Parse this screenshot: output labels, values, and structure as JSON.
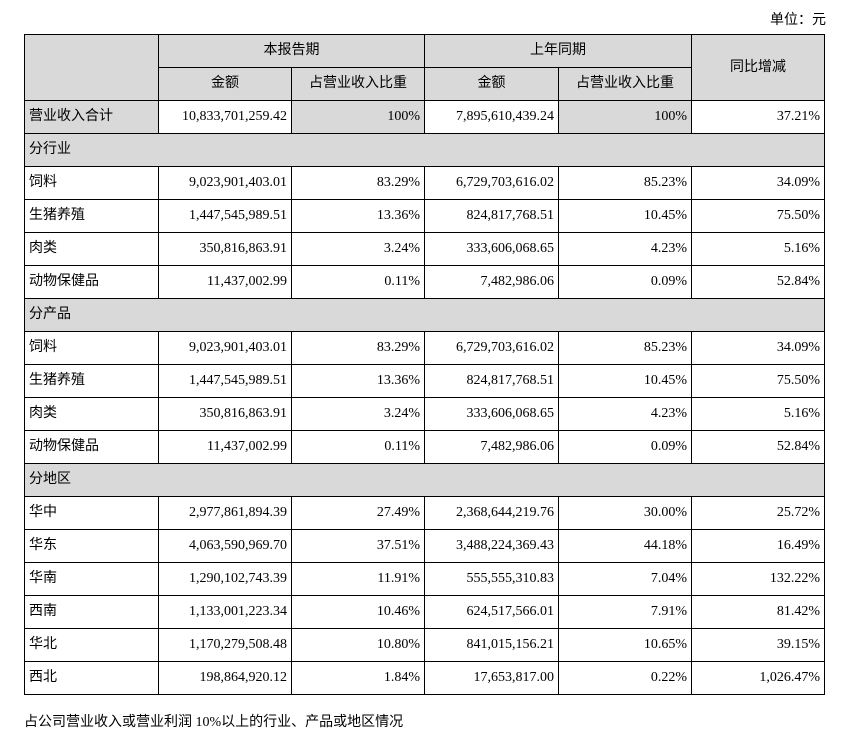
{
  "unit_label": "单位：元",
  "headers": {
    "current_period": "本报告期",
    "prior_period": "上年同期",
    "yoy_change": "同比增减",
    "amount": "金额",
    "ratio": "占营业收入比重"
  },
  "total": {
    "label": "营业收入合计",
    "cur_amount": "10,833,701,259.42",
    "cur_ratio": "100%",
    "prev_amount": "7,895,610,439.24",
    "prev_ratio": "100%",
    "change": "37.21%"
  },
  "sections": [
    {
      "title": "分行业",
      "rows": [
        {
          "label": "饲料",
          "cur_amount": "9,023,901,403.01",
          "cur_ratio": "83.29%",
          "prev_amount": "6,729,703,616.02",
          "prev_ratio": "85.23%",
          "change": "34.09%"
        },
        {
          "label": "生猪养殖",
          "cur_amount": "1,447,545,989.51",
          "cur_ratio": "13.36%",
          "prev_amount": "824,817,768.51",
          "prev_ratio": "10.45%",
          "change": "75.50%"
        },
        {
          "label": "肉类",
          "cur_amount": "350,816,863.91",
          "cur_ratio": "3.24%",
          "prev_amount": "333,606,068.65",
          "prev_ratio": "4.23%",
          "change": "5.16%"
        },
        {
          "label": "动物保健品",
          "cur_amount": "11,437,002.99",
          "cur_ratio": "0.11%",
          "prev_amount": "7,482,986.06",
          "prev_ratio": "0.09%",
          "change": "52.84%"
        }
      ]
    },
    {
      "title": "分产品",
      "rows": [
        {
          "label": "饲料",
          "cur_amount": "9,023,901,403.01",
          "cur_ratio": "83.29%",
          "prev_amount": "6,729,703,616.02",
          "prev_ratio": "85.23%",
          "change": "34.09%"
        },
        {
          "label": "生猪养殖",
          "cur_amount": "1,447,545,989.51",
          "cur_ratio": "13.36%",
          "prev_amount": "824,817,768.51",
          "prev_ratio": "10.45%",
          "change": "75.50%"
        },
        {
          "label": "肉类",
          "cur_amount": "350,816,863.91",
          "cur_ratio": "3.24%",
          "prev_amount": "333,606,068.65",
          "prev_ratio": "4.23%",
          "change": "5.16%"
        },
        {
          "label": "动物保健品",
          "cur_amount": "11,437,002.99",
          "cur_ratio": "0.11%",
          "prev_amount": "7,482,986.06",
          "prev_ratio": "0.09%",
          "change": "52.84%"
        }
      ]
    },
    {
      "title": "分地区",
      "rows": [
        {
          "label": "华中",
          "cur_amount": "2,977,861,894.39",
          "cur_ratio": "27.49%",
          "prev_amount": "2,368,644,219.76",
          "prev_ratio": "30.00%",
          "change": "25.72%"
        },
        {
          "label": "华东",
          "cur_amount": "4,063,590,969.70",
          "cur_ratio": "37.51%",
          "prev_amount": "3,488,224,369.43",
          "prev_ratio": "44.18%",
          "change": "16.49%"
        },
        {
          "label": "华南",
          "cur_amount": "1,290,102,743.39",
          "cur_ratio": "11.91%",
          "prev_amount": "555,555,310.83",
          "prev_ratio": "7.04%",
          "change": "132.22%"
        },
        {
          "label": "西南",
          "cur_amount": "1,133,001,223.34",
          "cur_ratio": "10.46%",
          "prev_amount": "624,517,566.01",
          "prev_ratio": "7.91%",
          "change": "81.42%"
        },
        {
          "label": "华北",
          "cur_amount": "1,170,279,508.48",
          "cur_ratio": "10.80%",
          "prev_amount": "841,015,156.21",
          "prev_ratio": "10.65%",
          "change": "39.15%"
        },
        {
          "label": "西北",
          "cur_amount": "198,864,920.12",
          "cur_ratio": "1.84%",
          "prev_amount": "17,653,817.00",
          "prev_ratio": "0.22%",
          "change": "1,026.47%"
        }
      ]
    }
  ],
  "footnote": "占公司营业收入或营业利润 10%以上的行业、产品或地区情况"
}
